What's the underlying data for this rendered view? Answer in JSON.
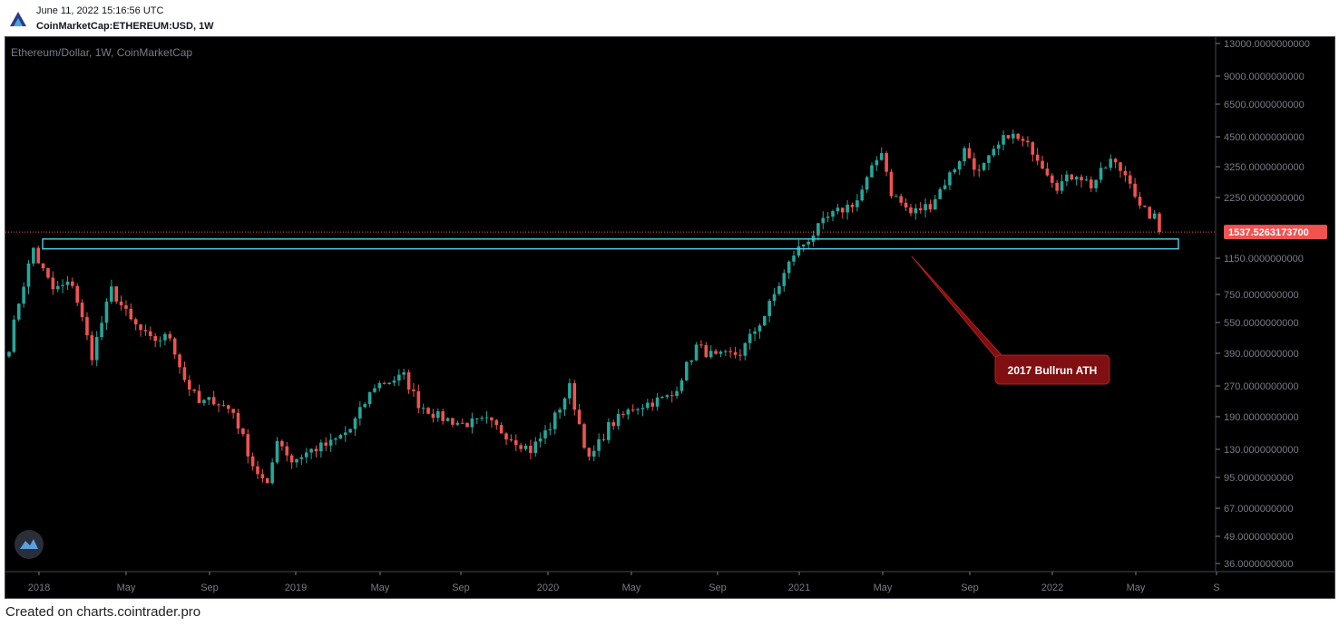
{
  "header": {
    "timestamp": "June 11, 2022 15:16:56 UTC",
    "symbol": "CoinMarketCap:ETHEREUM:USD, 1W"
  },
  "footer": {
    "text": "Created on charts.cointrader.pro"
  },
  "colors": {
    "up": "#26a69a",
    "down": "#ef5350",
    "background": "#000000",
    "zone": "#4dd0e1",
    "annotation": "#7f0f10"
  },
  "chart_data": {
    "type": "candlestick",
    "title": "Ethereum/Dollar, 1W, CoinMarketCap",
    "y_scale": "log",
    "y_ticks": [
      "13000.0000000000",
      "9000.0000000000",
      "6500.0000000000",
      "4500.0000000000",
      "3250.0000000000",
      "2250.0000000000",
      "1150.0000000000",
      "750.0000000000",
      "550.0000000000",
      "390.0000000000",
      "270.0000000000",
      "190.0000000000",
      "130.0000000000",
      "95.0000000000",
      "67.0000000000",
      "49.0000000000",
      "36.0000000000"
    ],
    "x_ticks": [
      "2018",
      "May",
      "Sep",
      "2019",
      "May",
      "Sep",
      "2020",
      "May",
      "Sep",
      "2021",
      "May",
      "Sep",
      "2022",
      "May",
      "S"
    ],
    "last_price_label": "1537.5263173700",
    "last_price": 1537.5,
    "zone": {
      "low": 1270,
      "high": 1420,
      "label": "2017 Bullrun ATH"
    },
    "price_path": [
      [
        "2017-12-04",
        420
      ],
      [
        "2017-12-18",
        700
      ],
      [
        "2018-01-08",
        1280
      ],
      [
        "2018-01-15",
        1100
      ],
      [
        "2018-02-05",
        800
      ],
      [
        "2018-03-05",
        860
      ],
      [
        "2018-04-02",
        380
      ],
      [
        "2018-04-30",
        800
      ],
      [
        "2018-05-28",
        560
      ],
      [
        "2018-06-25",
        450
      ],
      [
        "2018-07-23",
        470
      ],
      [
        "2018-08-13",
        290
      ],
      [
        "2018-09-03",
        220
      ],
      [
        "2018-09-24",
        230
      ],
      [
        "2018-10-22",
        200
      ],
      [
        "2018-11-19",
        110
      ],
      [
        "2018-12-10",
        85
      ],
      [
        "2018-12-24",
        150
      ],
      [
        "2019-01-14",
        115
      ],
      [
        "2019-02-11",
        130
      ],
      [
        "2019-03-11",
        140
      ],
      [
        "2019-04-08",
        165
      ],
      [
        "2019-05-13",
        270
      ],
      [
        "2019-06-24",
        300
      ],
      [
        "2019-07-15",
        220
      ],
      [
        "2019-08-12",
        190
      ],
      [
        "2019-09-16",
        175
      ],
      [
        "2019-10-21",
        180
      ],
      [
        "2019-11-25",
        150
      ],
      [
        "2019-12-23",
        130
      ],
      [
        "2020-01-20",
        170
      ],
      [
        "2020-02-17",
        265
      ],
      [
        "2020-03-16",
        115
      ],
      [
        "2020-04-13",
        170
      ],
      [
        "2020-05-18",
        210
      ],
      [
        "2020-07-13",
        240
      ],
      [
        "2020-08-17",
        420
      ],
      [
        "2020-09-14",
        370
      ],
      [
        "2020-10-19",
        390
      ],
      [
        "2020-11-23",
        600
      ],
      [
        "2021-01-04",
        1200
      ],
      [
        "2021-02-22",
        1800
      ],
      [
        "2021-04-05",
        2200
      ],
      [
        "2021-05-10",
        3900
      ],
      [
        "2021-05-24",
        2400
      ],
      [
        "2021-06-21",
        1900
      ],
      [
        "2021-07-19",
        2100
      ],
      [
        "2021-08-23",
        3200
      ],
      [
        "2021-09-06",
        3900
      ],
      [
        "2021-09-27",
        3000
      ],
      [
        "2021-11-08",
        4700
      ],
      [
        "2021-12-13",
        3900
      ],
      [
        "2022-01-17",
        2600
      ],
      [
        "2022-02-14",
        3000
      ],
      [
        "2022-03-07",
        2600
      ],
      [
        "2022-04-04",
        3450
      ],
      [
        "2022-05-02",
        2800
      ],
      [
        "2022-05-16",
        2000
      ],
      [
        "2022-06-06",
        1800
      ],
      [
        "2022-06-13",
        1537
      ]
    ]
  }
}
